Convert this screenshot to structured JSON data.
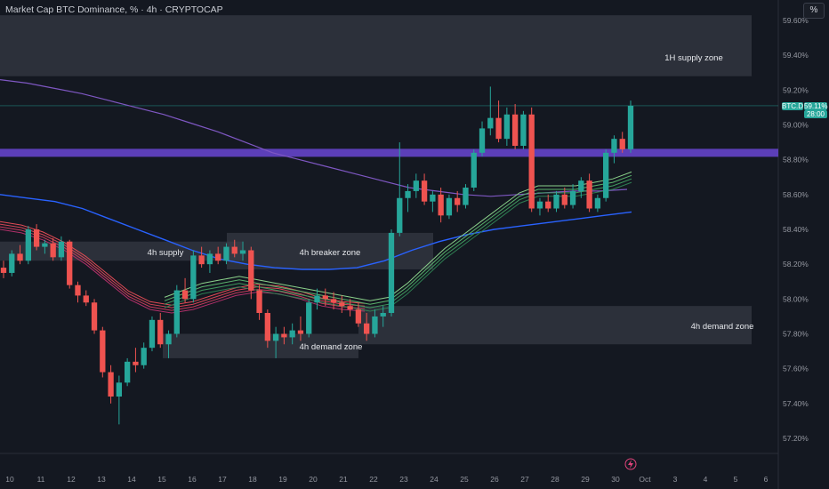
{
  "header": {
    "title": "Market Cap BTC Dominance, % · 4h · CRYPTOCAP",
    "pct_button": "%"
  },
  "price_badge": {
    "symbol": "BTC.D",
    "price": "59.11%",
    "countdown": "28:00",
    "color": "#26a69a"
  },
  "colors": {
    "bull": "#26a69a",
    "bear": "#ef5350",
    "zone": "#3b3f4b",
    "level": "#5c3fb8",
    "ma_blue": "#2962ff",
    "ma_purple": "#7e57c2"
  },
  "zones": [
    {
      "label": "1H supply zone",
      "price_top": 59.63,
      "price_bottom": 59.28
    },
    {
      "label": "4h supply",
      "price_top": 58.33,
      "price_bottom": 58.22
    },
    {
      "label": "4h breaker zone",
      "price_top": 58.38,
      "price_bottom": 58.17
    },
    {
      "label": "4h demand zone",
      "price_top": 57.8,
      "price_bottom": 57.66
    },
    {
      "label": "4h demand zone",
      "price_top": 57.96,
      "price_bottom": 57.74
    }
  ],
  "chart_data": {
    "type": "candlestick",
    "x_ticks": [
      "10",
      "11",
      "12",
      "13",
      "14",
      "15",
      "16",
      "17",
      "18",
      "19",
      "20",
      "21",
      "22",
      "23",
      "24",
      "25",
      "26",
      "27",
      "28",
      "29",
      "30",
      "Oct",
      "3",
      "4",
      "5",
      "6"
    ],
    "y_ticks": [
      "59.60%",
      "59.40%",
      "59.20%",
      "59.00%",
      "58.80%",
      "58.60%",
      "58.40%",
      "58.20%",
      "58.00%",
      "57.80%",
      "57.60%",
      "57.40%",
      "57.20%"
    ],
    "ylim": [
      57.2,
      59.6
    ],
    "horizontal_level": 58.84,
    "last_price": 59.11,
    "candles": [
      [
        58.18,
        58.22,
        58.12,
        58.15
      ],
      [
        58.15,
        58.28,
        58.13,
        58.26
      ],
      [
        58.26,
        58.31,
        58.2,
        58.22
      ],
      [
        58.22,
        58.42,
        58.2,
        58.4
      ],
      [
        58.4,
        58.43,
        58.28,
        58.3
      ],
      [
        58.3,
        58.34,
        58.26,
        58.32
      ],
      [
        58.32,
        58.35,
        58.22,
        58.24
      ],
      [
        58.24,
        58.36,
        58.22,
        58.33
      ],
      [
        58.33,
        58.34,
        58.06,
        58.08
      ],
      [
        58.08,
        58.1,
        57.98,
        58.02
      ],
      [
        58.02,
        58.05,
        57.96,
        57.98
      ],
      [
        57.98,
        58.0,
        57.8,
        57.82
      ],
      [
        57.82,
        57.84,
        57.55,
        57.58
      ],
      [
        57.58,
        57.62,
        57.4,
        57.44
      ],
      [
        57.44,
        57.56,
        57.28,
        57.52
      ],
      [
        57.52,
        57.66,
        57.5,
        57.64
      ],
      [
        57.64,
        57.72,
        57.58,
        57.62
      ],
      [
        57.62,
        57.75,
        57.6,
        57.72
      ],
      [
        57.72,
        57.9,
        57.7,
        57.88
      ],
      [
        57.88,
        57.92,
        57.72,
        57.74
      ],
      [
        57.74,
        57.82,
        57.66,
        57.8
      ],
      [
        57.8,
        58.08,
        57.78,
        58.05
      ],
      [
        58.05,
        58.12,
        57.98,
        58.0
      ],
      [
        58.0,
        58.28,
        57.98,
        58.25
      ],
      [
        58.25,
        58.3,
        58.18,
        58.2
      ],
      [
        58.2,
        58.28,
        58.15,
        58.26
      ],
      [
        58.26,
        58.3,
        58.2,
        58.22
      ],
      [
        58.22,
        58.32,
        58.2,
        58.3
      ],
      [
        58.3,
        58.34,
        58.24,
        58.26
      ],
      [
        58.26,
        58.33,
        58.22,
        58.28
      ],
      [
        58.28,
        58.3,
        58.0,
        58.05
      ],
      [
        58.05,
        58.08,
        57.88,
        57.92
      ],
      [
        57.92,
        57.94,
        57.72,
        57.76
      ],
      [
        57.76,
        57.84,
        57.66,
        57.8
      ],
      [
        57.8,
        57.84,
        57.74,
        57.78
      ],
      [
        57.78,
        57.86,
        57.74,
        57.82
      ],
      [
        57.82,
        57.9,
        57.76,
        57.8
      ],
      [
        57.8,
        58.0,
        57.78,
        57.98
      ],
      [
        57.98,
        58.06,
        57.94,
        58.02
      ],
      [
        58.02,
        58.06,
        57.96,
        58.0
      ],
      [
        58.0,
        58.04,
        57.94,
        57.98
      ],
      [
        57.98,
        58.02,
        57.92,
        57.96
      ],
      [
        57.96,
        58.0,
        57.9,
        57.94
      ],
      [
        57.94,
        57.98,
        57.84,
        57.86
      ],
      [
        57.86,
        57.92,
        57.76,
        57.8
      ],
      [
        57.8,
        57.94,
        57.78,
        57.9
      ],
      [
        57.9,
        57.96,
        57.84,
        57.92
      ],
      [
        57.92,
        58.4,
        57.9,
        58.38
      ],
      [
        58.38,
        58.9,
        58.36,
        58.58
      ],
      [
        58.58,
        58.66,
        58.5,
        58.62
      ],
      [
        58.62,
        58.72,
        58.58,
        58.68
      ],
      [
        58.68,
        58.72,
        58.54,
        58.56
      ],
      [
        58.56,
        58.62,
        58.5,
        58.6
      ],
      [
        58.6,
        58.64,
        58.44,
        58.48
      ],
      [
        58.48,
        58.6,
        58.46,
        58.58
      ],
      [
        58.58,
        58.62,
        58.5,
        58.54
      ],
      [
        58.54,
        58.66,
        58.52,
        58.64
      ],
      [
        58.64,
        58.86,
        58.62,
        58.84
      ],
      [
        58.84,
        59.02,
        58.82,
        58.98
      ],
      [
        58.98,
        59.22,
        58.94,
        59.04
      ],
      [
        59.04,
        59.14,
        58.9,
        58.92
      ],
      [
        58.92,
        59.1,
        58.88,
        59.06
      ],
      [
        59.06,
        59.12,
        58.86,
        58.88
      ],
      [
        58.88,
        59.08,
        58.86,
        59.06
      ],
      [
        59.06,
        59.1,
        58.5,
        58.52
      ],
      [
        58.52,
        58.58,
        58.48,
        58.56
      ],
      [
        58.56,
        58.6,
        58.5,
        58.52
      ],
      [
        58.52,
        58.62,
        58.5,
        58.6
      ],
      [
        58.6,
        58.64,
        58.52,
        58.54
      ],
      [
        58.54,
        58.66,
        58.52,
        58.62
      ],
      [
        58.62,
        58.7,
        58.58,
        58.68
      ],
      [
        58.68,
        58.72,
        58.5,
        58.52
      ],
      [
        58.52,
        58.6,
        58.5,
        58.58
      ],
      [
        58.58,
        58.86,
        58.56,
        58.84
      ],
      [
        58.84,
        58.94,
        58.78,
        58.92
      ],
      [
        58.92,
        58.96,
        58.84,
        58.86
      ],
      [
        58.86,
        59.14,
        58.84,
        59.11
      ]
    ],
    "ma_purple": [
      59.26,
      59.24,
      59.21,
      59.18,
      59.14,
      59.1,
      59.06,
      59.01,
      58.96,
      58.9,
      58.84,
      58.8,
      58.76,
      58.72,
      58.68,
      58.64,
      58.62,
      58.6,
      58.59,
      58.6,
      58.61,
      58.62,
      58.62,
      58.63
    ],
    "ma_blue": [
      58.6,
      58.58,
      58.56,
      58.52,
      58.46,
      58.4,
      58.34,
      58.28,
      58.23,
      58.2,
      58.18,
      58.17,
      58.17,
      58.18,
      58.22,
      58.28,
      58.33,
      58.37,
      58.4,
      58.42,
      58.44,
      58.46,
      58.48,
      58.5
    ],
    "ribbon_red": [
      58.42,
      58.4,
      58.36,
      58.3,
      58.22,
      58.12,
      58.02,
      57.96,
      57.94,
      57.96,
      58.0,
      58.04,
      58.06,
      58.05,
      58.02,
      57.98,
      57.96,
      57.95
    ],
    "ribbon_green": [
      57.98,
      58.02,
      58.06,
      58.08,
      58.1,
      58.08,
      58.06,
      58.04,
      58.02,
      58.0,
      57.98,
      57.96,
      57.98,
      58.06,
      58.16,
      58.26,
      58.34,
      58.42,
      58.5,
      58.58,
      58.62,
      58.62,
      58.62,
      58.64,
      58.66,
      58.7
    ]
  }
}
